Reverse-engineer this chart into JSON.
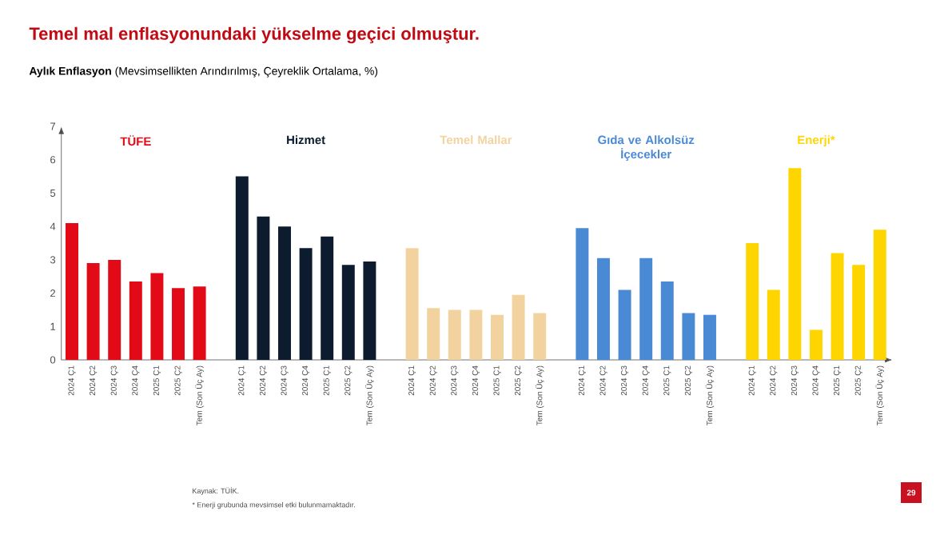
{
  "chart_data": {
    "type": "bar",
    "title": "Temel mal enflasyonundaki yükselme geçici olmuştur.",
    "subtitle": "**Aylık Enflasyon** (Mevsimsellikten Arındırılmış, Çeyreklik Ortalama, %)",
    "categories": [
      "2024 Ç1",
      "2024 Ç2",
      "2024 Ç3",
      "2024 Ç4",
      "2025 Ç1",
      "2025 Ç2",
      "Tem (Son Üç Ay)",
      null,
      "2024 Ç1",
      "2024 Ç2",
      "2024 Ç3",
      "2024 Ç4",
      "2025 Ç1",
      "2025 Ç2",
      "Tem (Son Üç Ay)",
      null,
      "2024 Ç1",
      "2024 Ç2",
      "2024 Ç3",
      "2024 Ç4",
      "2025 Ç1",
      "2025 Ç2",
      "Tem (Son Üç Ay)",
      null,
      "2024 Ç1",
      "2024 Ç2",
      "2024 Ç3",
      "2024 Ç4",
      "2025 Ç1",
      "2025 Ç2",
      "Tem (Son Üç Ay)",
      null,
      "2024 Ç1",
      "2024 Ç2",
      "2024 Ç3",
      "2024 Ç4",
      "2025 Ç1",
      "2025 Ç2",
      "Tem (Son Üç Ay)"
    ],
    "series": [
      {
        "name": "TÜFE",
        "color": "#e30a17",
        "values": [
          4.1,
          2.9,
          3.0,
          2.35,
          2.6,
          2.15,
          2.2,
          null,
          null,
          null,
          null,
          null,
          null,
          null,
          null,
          null,
          null,
          null,
          null,
          null,
          null,
          null,
          null,
          null,
          null,
          null,
          null,
          null,
          null,
          null,
          null,
          null,
          null,
          null,
          null,
          null,
          null,
          null,
          null
        ]
      },
      {
        "name": "Hizmet",
        "color": "#0d1b2e",
        "values": [
          null,
          null,
          null,
          null,
          null,
          null,
          null,
          null,
          5.5,
          4.3,
          4.0,
          3.35,
          3.7,
          2.85,
          2.95,
          null,
          null,
          null,
          null,
          null,
          null,
          null,
          null,
          null,
          null,
          null,
          null,
          null,
          null,
          null,
          null,
          null,
          null,
          null,
          null,
          null,
          null,
          null,
          null
        ]
      },
      {
        "name": "Temel Mallar",
        "color": "#f2d3a0",
        "values": [
          null,
          null,
          null,
          null,
          null,
          null,
          null,
          null,
          null,
          null,
          null,
          null,
          null,
          null,
          null,
          null,
          3.35,
          1.55,
          1.5,
          1.5,
          1.35,
          1.95,
          1.4,
          null,
          null,
          null,
          null,
          null,
          null,
          null,
          null,
          null,
          null,
          null,
          null,
          null,
          null,
          null,
          null
        ]
      },
      {
        "name": "Gıda ve Alkolsüz İçecekler",
        "color": "#4a8ad4",
        "values": [
          null,
          null,
          null,
          null,
          null,
          null,
          null,
          null,
          null,
          null,
          null,
          null,
          null,
          null,
          null,
          null,
          null,
          null,
          null,
          null,
          null,
          null,
          null,
          null,
          3.95,
          3.05,
          2.1,
          3.05,
          2.35,
          1.4,
          1.35,
          null,
          null,
          null,
          null,
          null,
          null,
          null,
          null
        ]
      },
      {
        "name": "Enerji*",
        "color": "#ffd500",
        "values": [
          null,
          null,
          null,
          null,
          null,
          null,
          null,
          null,
          null,
          null,
          null,
          null,
          null,
          null,
          null,
          null,
          null,
          null,
          null,
          null,
          null,
          null,
          null,
          null,
          null,
          null,
          null,
          null,
          null,
          null,
          null,
          null,
          3.5,
          2.1,
          5.75,
          0.9,
          3.2,
          2.85,
          3.9
        ]
      }
    ],
    "ylim": [
      0,
      7
    ],
    "yticks": [
      0,
      1,
      2,
      3,
      4,
      5,
      6,
      7
    ],
    "grid": false,
    "annotations": [
      "Kaynak: TÜİK.",
      "* Enerji grubunda mevsimsel etki bulunmamaktadır.",
      "29"
    ]
  }
}
